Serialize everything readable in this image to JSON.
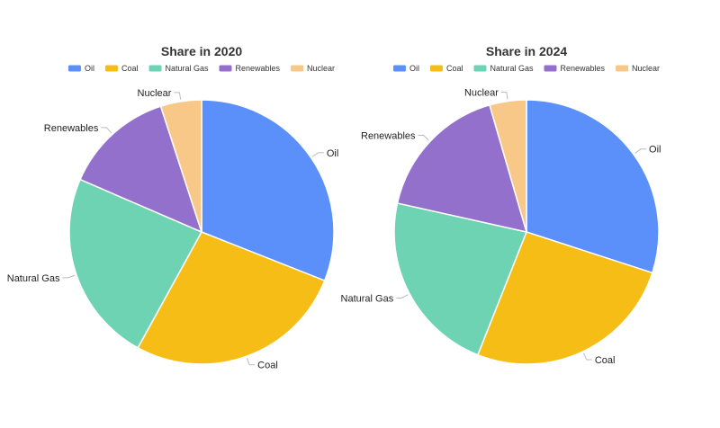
{
  "chart_data": [
    {
      "type": "pie",
      "title": "Share in 2020",
      "categories": [
        "Oil",
        "Coal",
        "Natural Gas",
        "Renewables",
        "Nuclear"
      ],
      "values": [
        31,
        27,
        23.5,
        13.5,
        5
      ],
      "legend_position": "top"
    },
    {
      "type": "pie",
      "title": "Share in 2024",
      "categories": [
        "Oil",
        "Coal",
        "Natural Gas",
        "Renewables",
        "Nuclear"
      ],
      "values": [
        30,
        26,
        22.5,
        17,
        4.5
      ],
      "legend_position": "top"
    }
  ],
  "colors": {
    "Oil": "#5b8ff9",
    "Coal": "#f6bd16",
    "Natural Gas": "#6dd3b3",
    "Renewables": "#9370cc",
    "Nuclear": "#f8c888"
  }
}
